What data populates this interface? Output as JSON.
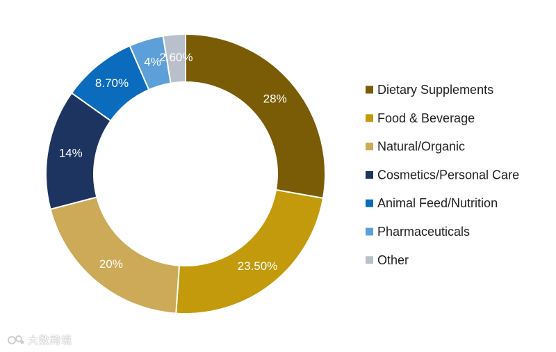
{
  "chart_data": {
    "type": "pie",
    "variant": "donut",
    "title": "",
    "categories": [
      "Dietary Supplements",
      "Food & Beverage",
      "Natural/Organic",
      "Cosmetics/Personal Care",
      "Animal Feed/Nutrition",
      "Pharmaceuticals",
      "Other"
    ],
    "values": [
      28,
      23.5,
      20,
      14,
      8.7,
      4,
      2.6
    ],
    "labels": [
      "28%",
      "23.50%",
      "20%",
      "14%",
      "8.70%",
      "4%",
      "2.60%"
    ],
    "colors": [
      "#7a5c06",
      "#c39a0b",
      "#ccaa58",
      "#1d3461",
      "#0b6bbd",
      "#5d9fd9",
      "#b9c0cc"
    ],
    "legend_position": "right",
    "start_angle": "top, clockwise"
  },
  "watermark": {
    "text": "大数跨境"
  }
}
